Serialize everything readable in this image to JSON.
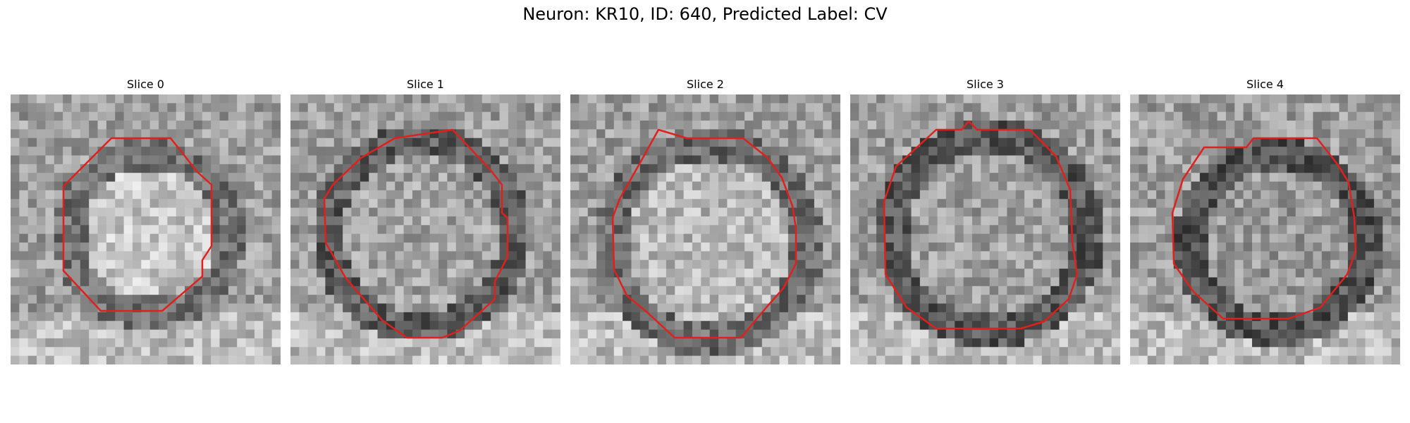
{
  "figure": {
    "title": "Neuron: KR10, ID: 640, Predicted Label: CV"
  },
  "slices": [
    {
      "title": "Slice 0"
    },
    {
      "title": "Slice 1"
    },
    {
      "title": "Slice 2"
    },
    {
      "title": "Slice 3"
    },
    {
      "title": "Slice 4"
    }
  ],
  "colors": {
    "contour": "#e0201c",
    "background": "#ffffff"
  }
}
